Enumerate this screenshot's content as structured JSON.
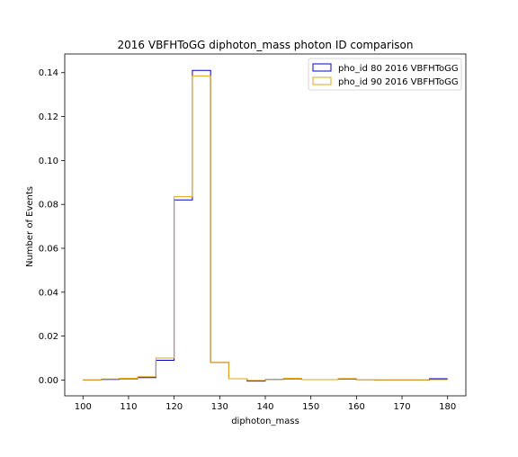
{
  "chart_data": {
    "type": "histogram-step",
    "title": "2016 VBFHToGG diphoton_mass photon ID comparison",
    "xlabel": "diphoton_mass",
    "ylabel": "Number of Events",
    "xlim": [
      96,
      184
    ],
    "ylim": [
      -0.0072,
      0.1485
    ],
    "x_ticks": [
      100,
      110,
      120,
      130,
      140,
      150,
      160,
      170,
      180
    ],
    "y_ticks": [
      0.0,
      0.02,
      0.04,
      0.06,
      0.08,
      0.1,
      0.12,
      0.14
    ],
    "y_tick_labels": [
      "0.00",
      "0.02",
      "0.04",
      "0.06",
      "0.08",
      "0.10",
      "0.12",
      "0.14"
    ],
    "bin_edges": [
      100,
      104,
      108,
      112,
      116,
      120,
      124,
      128,
      132,
      136,
      140,
      144,
      148,
      152,
      156,
      160,
      164,
      168,
      172,
      176,
      180
    ],
    "series": [
      {
        "name": "pho_id 80 2016 VBFHToGG",
        "color": "#0000cc",
        "values": [
          0.0,
          0.0003,
          0.0006,
          0.0011,
          0.009,
          0.082,
          0.141,
          0.008,
          0.0006,
          -0.0005,
          0.0003,
          0.0006,
          0.0002,
          0.0002,
          0.0005,
          0.0001,
          0.0,
          0.0,
          0.0,
          0.0006
        ]
      },
      {
        "name": "pho_id 90 2016 VBFHToGG",
        "color": "#e6a317",
        "values": [
          0.0,
          0.0005,
          0.0008,
          0.0015,
          0.01,
          0.0835,
          0.1385,
          0.008,
          0.0006,
          -0.0002,
          0.0003,
          0.0008,
          0.0002,
          0.0002,
          0.0007,
          0.0002,
          0.0,
          0.0,
          0.0,
          0.0002
        ]
      }
    ],
    "legend_position": "top-right",
    "grid": false
  }
}
